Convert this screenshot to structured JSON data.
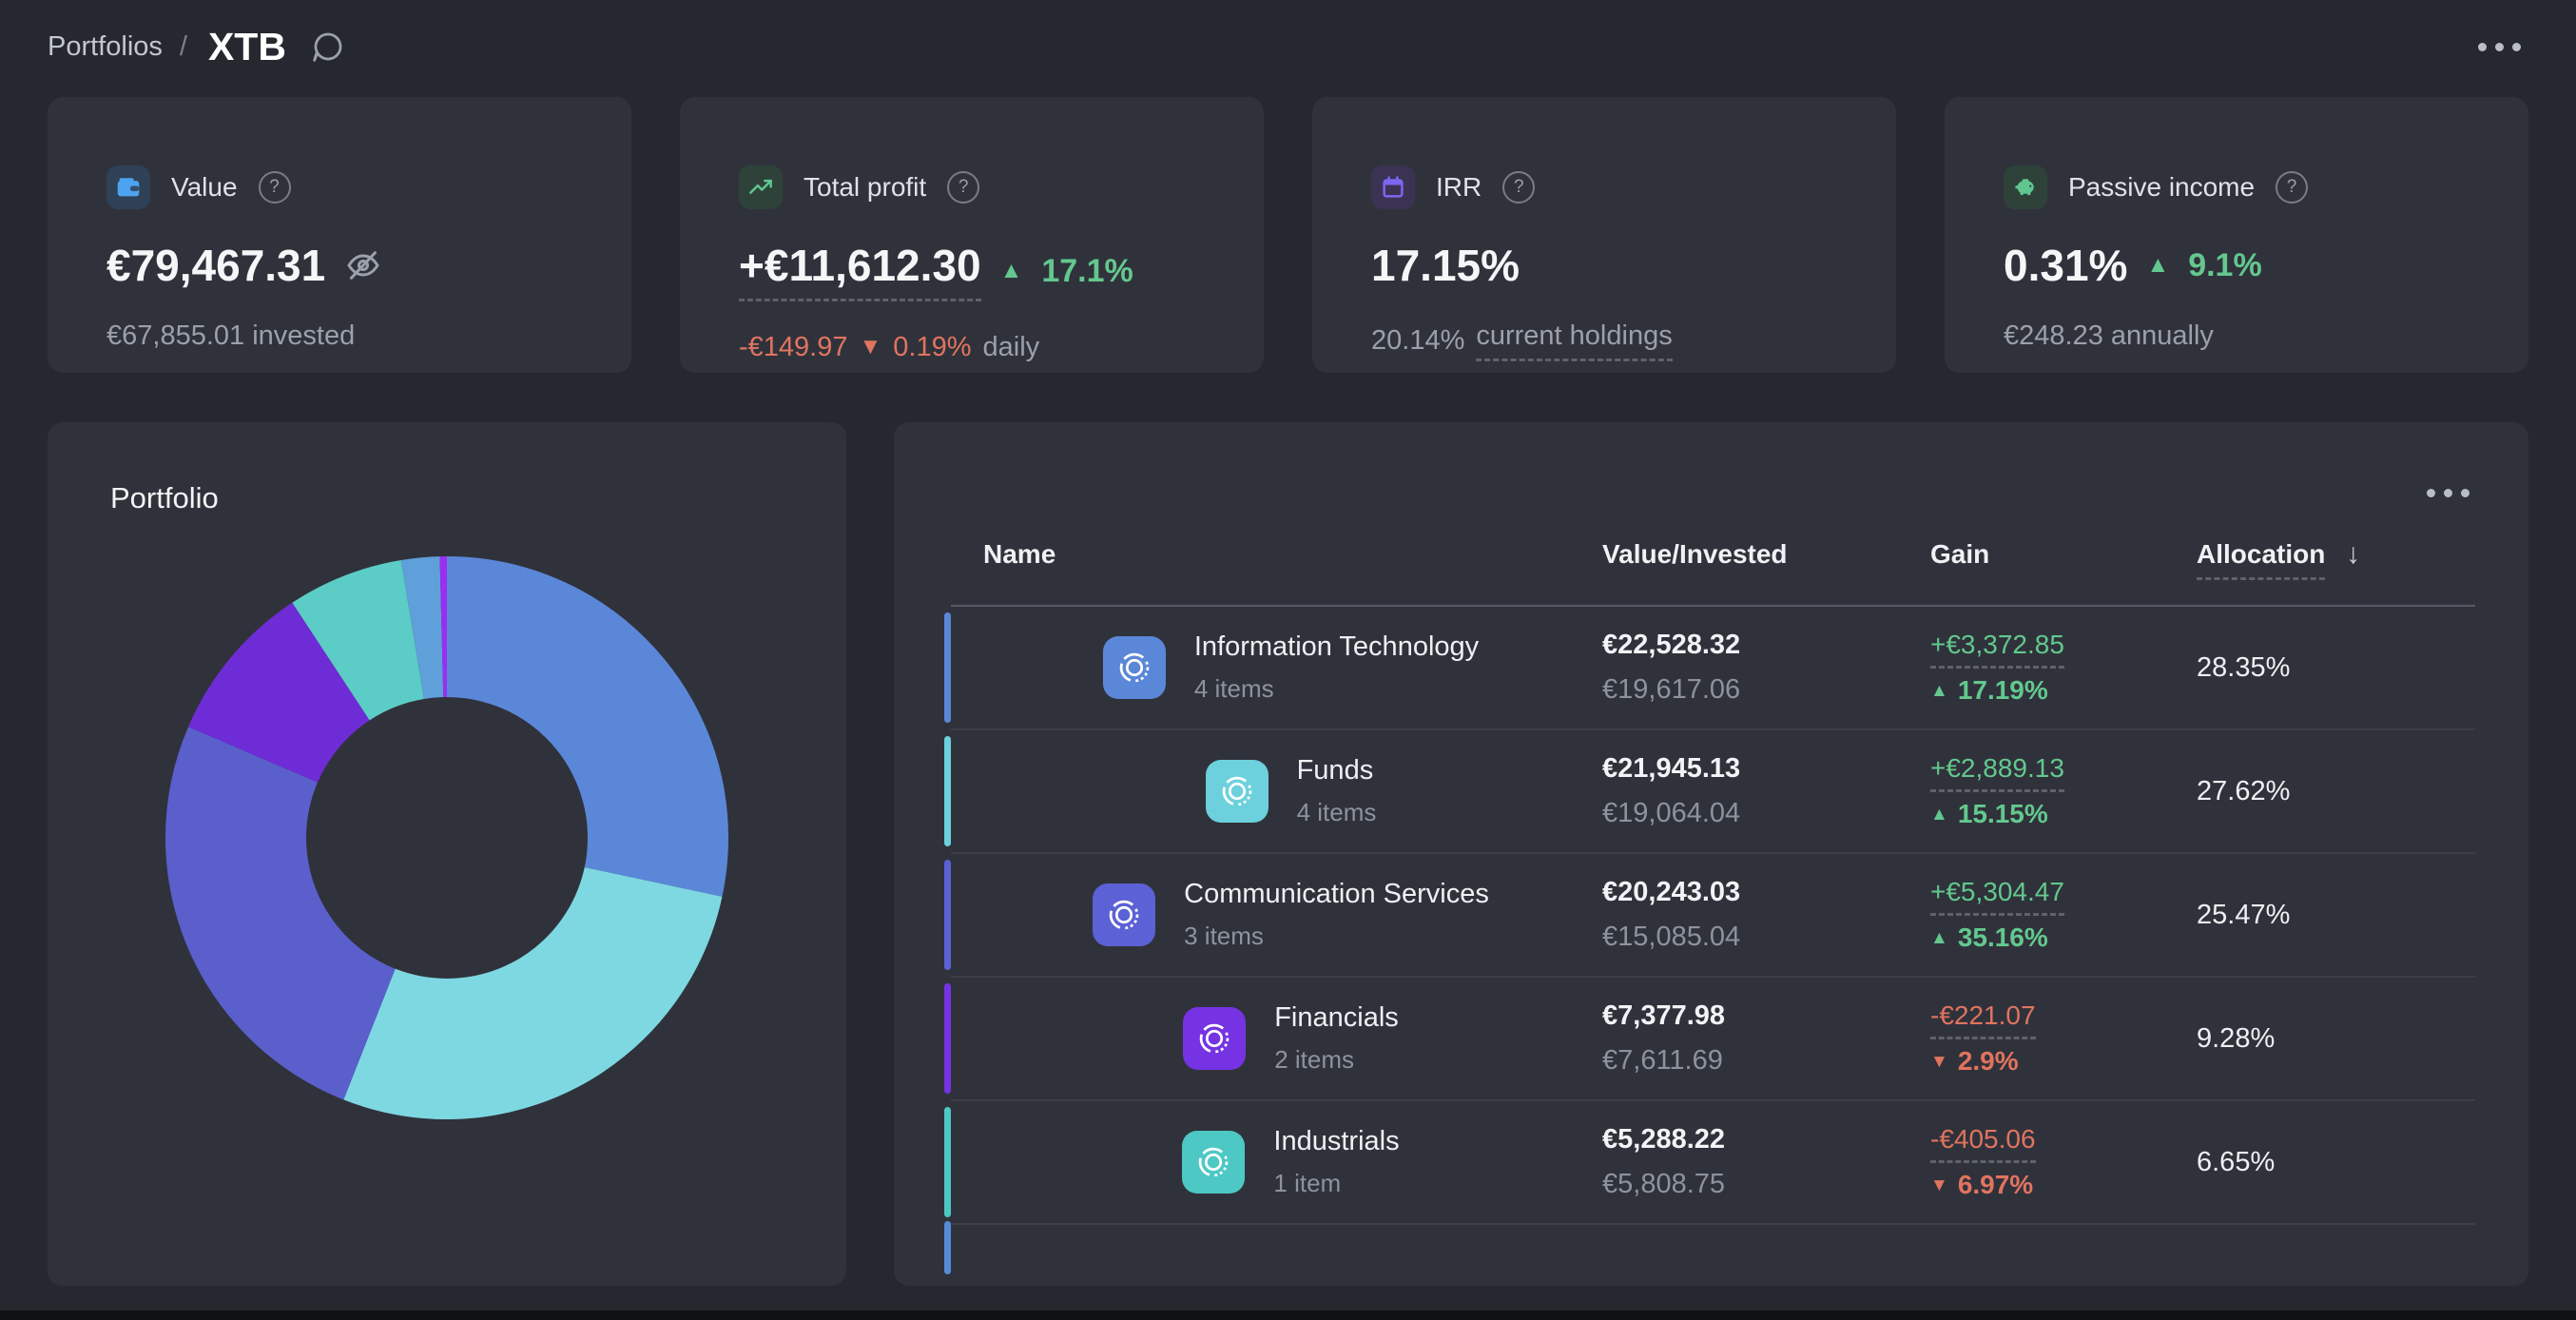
{
  "header": {
    "breadcrumb_root": "Portfolios",
    "breadcrumb_sep": "/",
    "title": "XTB"
  },
  "misc": {
    "help_glyph": "?",
    "sort_glyph": "↓"
  },
  "colors": {
    "page_bg": "#26282f",
    "card_bg": "#30323b",
    "green": "#63c88e",
    "red": "#e0745f",
    "value_icon_bg": "#2e4156",
    "value_icon": "#4da3ef",
    "profit_icon_bg": "#2e4239",
    "profit_icon": "#5fc68f",
    "irr_icon_bg": "#3a3354",
    "irr_icon": "#7d66f0",
    "passive_icon_bg": "#2e4239",
    "passive_icon": "#5fc68f",
    "next_row_sliver": "#568cd6"
  },
  "stats": {
    "value": {
      "label": "Value",
      "amount": "€79,467.31",
      "sub": "€67,855.01 invested"
    },
    "total_profit": {
      "label": "Total profit",
      "amount": "+€11,612.30",
      "delta_glyph": "▲",
      "delta_pct": "17.1%",
      "daily_amount": "-€149.97",
      "daily_glyph": "▼",
      "daily_pct": "0.19%",
      "daily_suffix": "daily"
    },
    "irr": {
      "label": "IRR",
      "amount": "17.15%",
      "sub_pct": "20.14%",
      "sub_link": "current holdings"
    },
    "passive_income": {
      "label": "Passive income",
      "amount": "0.31%",
      "delta_glyph": "▲",
      "delta_pct": "9.1%",
      "sub": "€248.23 annually"
    }
  },
  "portfolio": {
    "title": "Portfolio"
  },
  "chart_data": {
    "type": "pie",
    "subtype": "donut",
    "title": "Portfolio",
    "legend": "none",
    "slices": [
      {
        "label": "Information Technology",
        "pct": 28.35,
        "color": "#5b87d8"
      },
      {
        "label": "Funds",
        "pct": 27.62,
        "color": "#7ed8e2"
      },
      {
        "label": "Communication Services",
        "pct": 25.47,
        "color": "#5a5fcc"
      },
      {
        "label": "Financials",
        "pct": 9.28,
        "color": "#6e2cd6"
      },
      {
        "label": "Industrials",
        "pct": 6.65,
        "color": "#5bcdc6"
      },
      {
        "label": "unlabeled-small-1",
        "pct": 2.2,
        "color": "#5f9fda"
      },
      {
        "label": "unlabeled-small-2",
        "pct": 0.43,
        "color": "#9a2ff2"
      }
    ]
  },
  "holdings": {
    "columns": [
      "Name",
      "Value/Invested",
      "Gain",
      "Allocation"
    ],
    "rows": [
      {
        "name": "Information Technology",
        "items": "4 items",
        "value": "€22,528.32",
        "invested": "€19,617.06",
        "gain": "+€3,372.85",
        "gain_pct": "17.19%",
        "dir_glyph": "▲",
        "gain_color": "#63c88e",
        "allocation": "28.35%",
        "color": "#5b87d8"
      },
      {
        "name": "Funds",
        "items": "4 items",
        "value": "€21,945.13",
        "invested": "€19,064.04",
        "gain": "+€2,889.13",
        "gain_pct": "15.15%",
        "dir_glyph": "▲",
        "gain_color": "#63c88e",
        "allocation": "27.62%",
        "color": "#6cd1dc"
      },
      {
        "name": "Communication Services",
        "items": "3 items",
        "value": "€20,243.03",
        "invested": "€15,085.04",
        "gain": "+€5,304.47",
        "gain_pct": "35.16%",
        "dir_glyph": "▲",
        "gain_color": "#63c88e",
        "allocation": "25.47%",
        "color": "#5c61d6"
      },
      {
        "name": "Financials",
        "items": "2 items",
        "value": "€7,377.98",
        "invested": "€7,611.69",
        "gain": "-€221.07",
        "gain_pct": "2.9%",
        "dir_glyph": "▼",
        "gain_color": "#e0745f",
        "allocation": "9.28%",
        "color": "#7533e3"
      },
      {
        "name": "Industrials",
        "items": "1 item",
        "value": "€5,288.22",
        "invested": "€5,808.75",
        "gain": "-€405.06",
        "gain_pct": "6.97%",
        "dir_glyph": "▼",
        "gain_color": "#e0745f",
        "allocation": "6.65%",
        "color": "#4dc8c4"
      }
    ]
  }
}
